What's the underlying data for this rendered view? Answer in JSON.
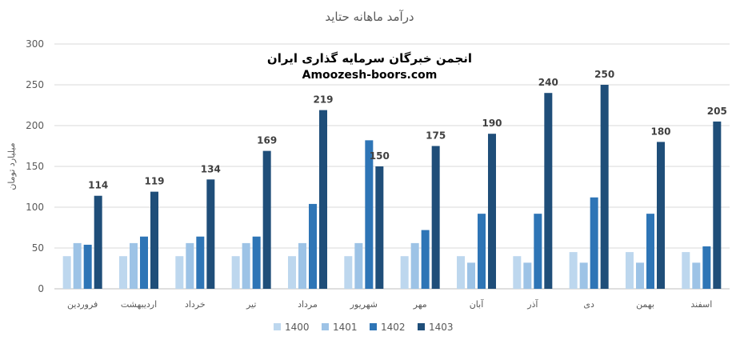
{
  "chart_data": {
    "type": "bar",
    "title": "درآمد ماهانه حتاید",
    "watermark": {
      "line1": "انجمن خبرگان سرمایه گذاری ایران",
      "line2": "Amoozesh-boors.com"
    },
    "ylabel": "میلیارد تومان",
    "ylim": [
      0,
      300
    ],
    "yticks": [
      "0",
      "50",
      "100",
      "150",
      "200",
      "250",
      "300"
    ],
    "grid": true,
    "legend_position": "bottom",
    "categories": [
      "فروردین",
      "اردیبهشت",
      "خرداد",
      "تیر",
      "مرداد",
      "شهریور",
      "مهر",
      "آبان",
      "آذر",
      "دی",
      "بهمن",
      "اسفند"
    ],
    "series": [
      {
        "name": "1400",
        "color": "#bdd7ee",
        "values": [
          40,
          40,
          40,
          40,
          40,
          40,
          40,
          40,
          40,
          45,
          45,
          45
        ]
      },
      {
        "name": "1401",
        "color": "#9dc3e6",
        "values": [
          56,
          56,
          56,
          56,
          56,
          56,
          56,
          32,
          32,
          32,
          32,
          32
        ]
      },
      {
        "name": "1402",
        "color": "#2e75b6",
        "values": [
          54,
          64,
          64,
          64,
          104,
          182,
          72,
          92,
          92,
          112,
          92,
          52
        ]
      },
      {
        "name": "1403",
        "color": "#1f4e79",
        "values": [
          114,
          119,
          134,
          169,
          219,
          150,
          175,
          190,
          240,
          250,
          180,
          205
        ]
      }
    ],
    "data_labels_series": "1403",
    "data_labels": [
      "114",
      "119",
      "134",
      "169",
      "219",
      "150",
      "175",
      "190",
      "240",
      "250",
      "180",
      "205"
    ]
  }
}
